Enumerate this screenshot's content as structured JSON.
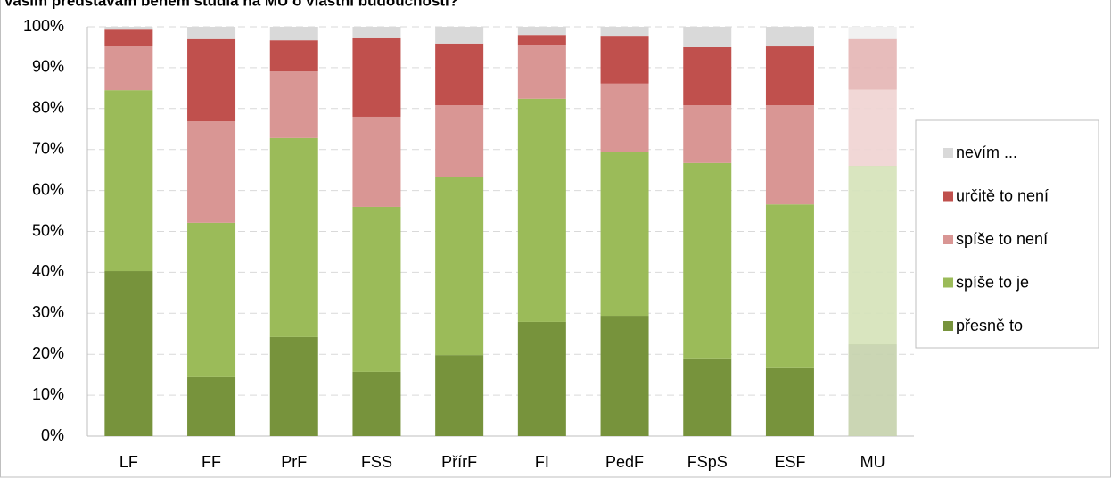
{
  "chart_data": {
    "type": "stacked_bar",
    "title": "Vašim představám během studia na MU o vlastní budoucnosti?",
    "categories": [
      "LF",
      "FF",
      "PrF",
      "FSS",
      "PřírF",
      "FI",
      "PedF",
      "FSpS",
      "ESF",
      "MU"
    ],
    "series": [
      {
        "name": "přesně to",
        "color": "#77933c",
        "values": [
          40.3,
          14.4,
          24.2,
          15.7,
          19.8,
          27.9,
          29.4,
          19.0,
          16.6,
          22.4
        ]
      },
      {
        "name": "spíše to je",
        "color": "#9bbb59",
        "values": [
          44.2,
          37.7,
          48.6,
          40.3,
          43.6,
          54.5,
          39.9,
          47.7,
          40.0,
          43.6
        ]
      },
      {
        "name": "spíše to není",
        "color": "#d99694",
        "values": [
          10.7,
          24.8,
          16.3,
          22.0,
          17.4,
          13.0,
          16.8,
          14.1,
          24.2,
          18.7
        ]
      },
      {
        "name": "určitě to není",
        "color": "#c0504d",
        "values": [
          4.1,
          20.1,
          7.6,
          19.2,
          15.1,
          2.6,
          11.7,
          14.2,
          14.4,
          12.3
        ]
      },
      {
        "name": "nevím ...",
        "color": "#d9d9d9",
        "values": [
          0.7,
          3.0,
          3.3,
          2.8,
          4.1,
          2.0,
          2.2,
          5.0,
          4.8,
          3.0
        ]
      }
    ],
    "ylim": [
      0,
      100
    ],
    "yticks": [
      {
        "value": 0,
        "label": "0%"
      },
      {
        "value": 10,
        "label": "10%"
      },
      {
        "value": 20,
        "label": "20%"
      },
      {
        "value": 30,
        "label": "30%"
      },
      {
        "value": 40,
        "label": "40%"
      },
      {
        "value": 50,
        "label": "50%"
      },
      {
        "value": 60,
        "label": "60%"
      },
      {
        "value": 70,
        "label": "70%"
      },
      {
        "value": 80,
        "label": "80%"
      },
      {
        "value": 90,
        "label": "90%"
      },
      {
        "value": 100,
        "label": "100%"
      }
    ],
    "grid": true,
    "legend": "right"
  }
}
